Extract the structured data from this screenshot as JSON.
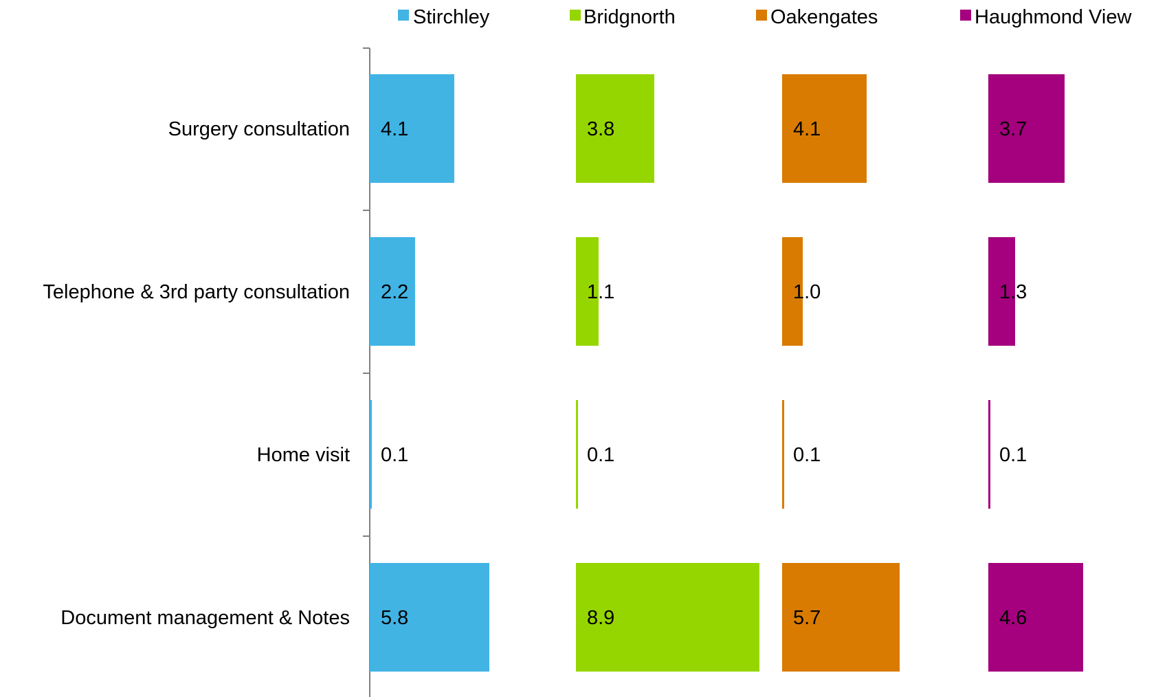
{
  "chart_data": {
    "type": "bar",
    "orientation": "horizontal",
    "layout": "panel-per-series",
    "categories": [
      "Surgery consultation",
      "Telephone & 3rd party consultation",
      "Home visit",
      "Document management & Notes"
    ],
    "series": [
      {
        "name": "Stirchley",
        "color": "#41b4e4",
        "values": [
          4.1,
          2.2,
          0.1,
          5.8
        ],
        "labels": [
          "4.1",
          "2.2",
          "0.1",
          "5.8"
        ]
      },
      {
        "name": "Bridgnorth",
        "color": "#96d600",
        "values": [
          3.8,
          1.1,
          0.1,
          8.9
        ],
        "labels": [
          "3.8",
          "1.1",
          "0.1",
          "8.9"
        ]
      },
      {
        "name": "Oakengates",
        "color": "#d97b00",
        "values": [
          4.1,
          1.0,
          0.1,
          5.7
        ],
        "labels": [
          "4.1",
          "1.0",
          "0.1",
          "5.7"
        ]
      },
      {
        "name": "Haughmond View",
        "color": "#a5007d",
        "values": [
          3.7,
          1.3,
          0.1,
          4.6
        ],
        "labels": [
          "3.7",
          "1.3",
          "0.1",
          "4.6"
        ]
      }
    ],
    "title": "",
    "xlabel": "",
    "ylabel": "",
    "grid": false,
    "legend_position": "top",
    "axis_color": "#808080"
  }
}
